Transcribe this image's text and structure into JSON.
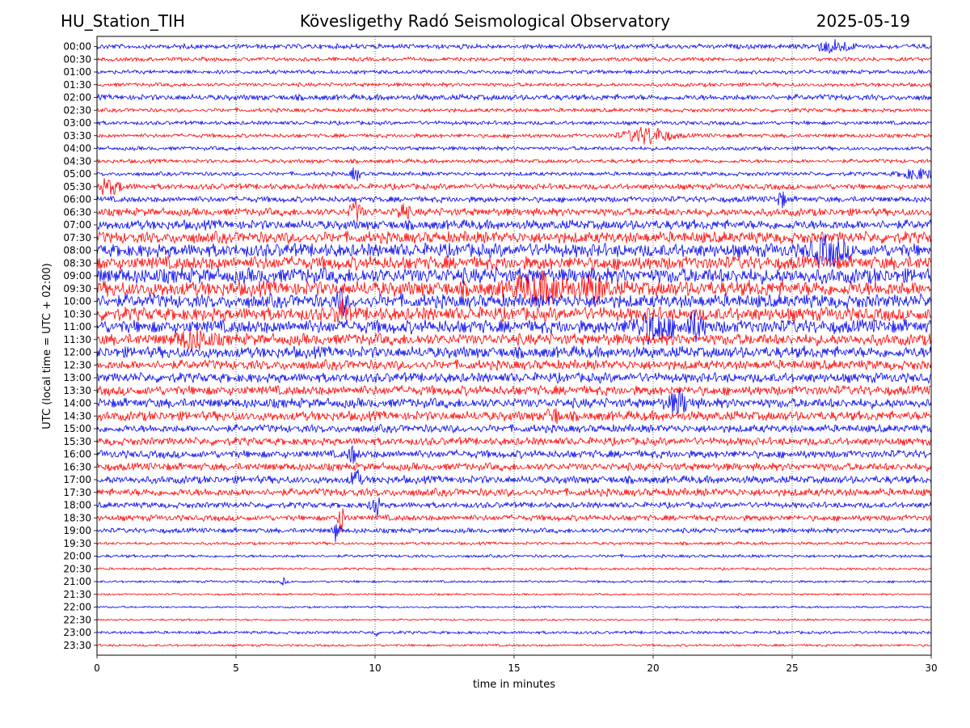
{
  "header": {
    "station": "HU_Station_TIH",
    "title": "Kövesligethy Radó Seismological Observatory",
    "date": "2025-05-19"
  },
  "chart_data": {
    "type": "line",
    "xlabel": "time in minutes",
    "ylabel": "UTC (local time = UTC + 02:00)",
    "xlim": [
      0,
      30
    ],
    "xticks": [
      0,
      5,
      10,
      15,
      20,
      25,
      30
    ],
    "grid": "vertical dotted at x ticks",
    "row_labels": [
      "00:00",
      "00:30",
      "01:00",
      "01:30",
      "02:00",
      "02:30",
      "03:00",
      "03:30",
      "04:00",
      "04:30",
      "05:00",
      "05:30",
      "06:00",
      "06:30",
      "07:00",
      "07:30",
      "08:00",
      "08:30",
      "09:00",
      "09:30",
      "10:00",
      "10:30",
      "11:00",
      "11:30",
      "12:00",
      "12:30",
      "13:00",
      "13:30",
      "14:00",
      "14:30",
      "15:00",
      "15:30",
      "16:00",
      "16:30",
      "17:00",
      "17:30",
      "18:00",
      "18:30",
      "19:00",
      "19:30",
      "20:00",
      "20:30",
      "21:00",
      "21:30",
      "22:00",
      "22:30",
      "23:00",
      "23:30"
    ],
    "colors": [
      "#0000ee",
      "#ff0000"
    ],
    "row_amplitude": [
      2.5,
      2,
      2,
      2,
      3,
      2,
      2,
      2,
      2,
      2,
      2,
      3,
      3,
      4,
      5,
      6,
      7,
      7,
      8,
      8,
      7,
      7,
      7,
      6,
      6,
      5,
      5,
      5,
      5,
      5,
      4,
      4,
      4,
      4,
      4,
      4,
      3,
      3,
      2.5,
      1.5,
      1.5,
      1.2,
      1.2,
      1,
      1,
      1,
      1.5,
      1.2
    ],
    "events": [
      {
        "row": "00:00",
        "x": 26.5,
        "amp": 7,
        "width": 0.6
      },
      {
        "row": "03:30",
        "x": 19.8,
        "amp": 10,
        "width": 0.8
      },
      {
        "row": "05:00",
        "x": 9.3,
        "amp": 9,
        "width": 0.15
      },
      {
        "row": "05:00",
        "x": 29.5,
        "amp": 6,
        "width": 0.6
      },
      {
        "row": "05:30",
        "x": 0.4,
        "amp": 8,
        "width": 0.5
      },
      {
        "row": "06:00",
        "x": 24.6,
        "amp": 10,
        "width": 0.15
      },
      {
        "row": "06:30",
        "x": 9.3,
        "amp": 12,
        "width": 0.2
      },
      {
        "row": "06:30",
        "x": 11.0,
        "amp": 10,
        "width": 0.2
      },
      {
        "row": "08:00",
        "x": 26.3,
        "amp": 14,
        "width": 0.6
      },
      {
        "row": "09:30",
        "x": 16.0,
        "amp": 14,
        "width": 1.0
      },
      {
        "row": "09:30",
        "x": 17.9,
        "amp": 12,
        "width": 0.4
      },
      {
        "row": "10:00",
        "x": 8.8,
        "amp": 12,
        "width": 0.2
      },
      {
        "row": "10:30",
        "x": 8.8,
        "amp": 14,
        "width": 0.2
      },
      {
        "row": "11:00",
        "x": 20.0,
        "amp": 14,
        "width": 0.7
      },
      {
        "row": "11:00",
        "x": 21.5,
        "amp": 14,
        "width": 0.3
      },
      {
        "row": "11:30",
        "x": 3.5,
        "amp": 10,
        "width": 0.6
      },
      {
        "row": "14:00",
        "x": 20.9,
        "amp": 12,
        "width": 0.4
      },
      {
        "row": "14:30",
        "x": 16.4,
        "amp": 10,
        "width": 0.2
      },
      {
        "row": "16:00",
        "x": 9.2,
        "amp": 10,
        "width": 0.15
      },
      {
        "row": "17:00",
        "x": 9.3,
        "amp": 14,
        "width": 0.15
      },
      {
        "row": "18:00",
        "x": 10.0,
        "amp": 16,
        "width": 0.15
      },
      {
        "row": "18:30",
        "x": 8.8,
        "amp": 16,
        "width": 0.15
      },
      {
        "row": "19:00",
        "x": 8.6,
        "amp": 13,
        "width": 0.12
      },
      {
        "row": "21:00",
        "x": 6.7,
        "amp": 4,
        "width": 0.1
      },
      {
        "row": "23:00",
        "x": 10.0,
        "amp": 4,
        "width": 0.1
      }
    ]
  }
}
